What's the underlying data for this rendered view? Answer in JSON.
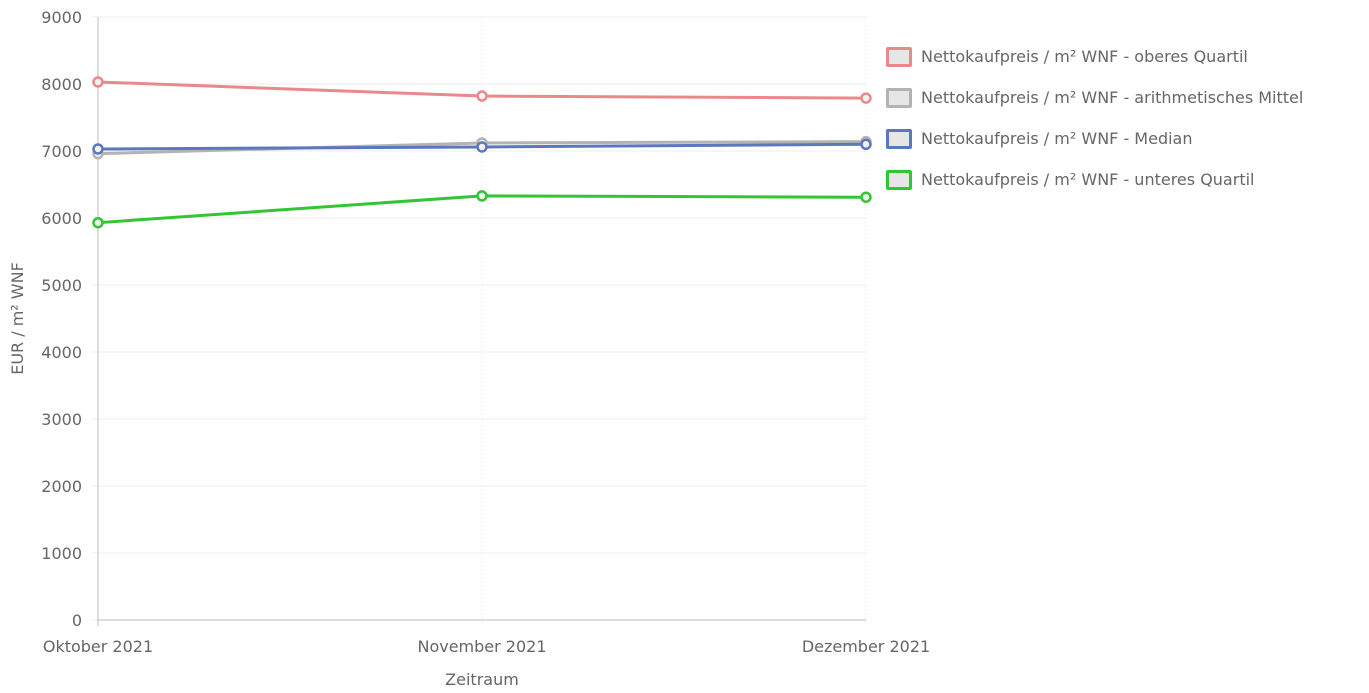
{
  "chart_data": {
    "type": "line",
    "categories": [
      "Oktober 2021",
      "November 2021",
      "Dezember 2021"
    ],
    "xlabel": "Zeitraum",
    "ylabel": "EUR / m² WNF",
    "ylim": [
      0,
      9000
    ],
    "yticks": [
      "0",
      "1000",
      "2000",
      "3000",
      "4000",
      "5000",
      "6000",
      "7000",
      "8000",
      "9000"
    ],
    "grid": true,
    "legend_position": "right",
    "series": [
      {
        "name": "Nettokaufpreis / m² WNF - oberes Quartil",
        "color": "#e8898b",
        "values": [
          8030,
          7820,
          7790
        ]
      },
      {
        "name": "Nettokaufpreis / m² WNF - arithmetisches Mittel",
        "color": "#b3b3b3",
        "values": [
          6960,
          7120,
          7140
        ]
      },
      {
        "name": "Nettokaufpreis / m² WNF - Median",
        "color": "#5b78bd",
        "values": [
          7030,
          7060,
          7100
        ]
      },
      {
        "name": "Nettokaufpreis / m² WNF - unteres Quartil",
        "color": "#33c633",
        "values": [
          5930,
          6330,
          6310
        ]
      }
    ]
  }
}
